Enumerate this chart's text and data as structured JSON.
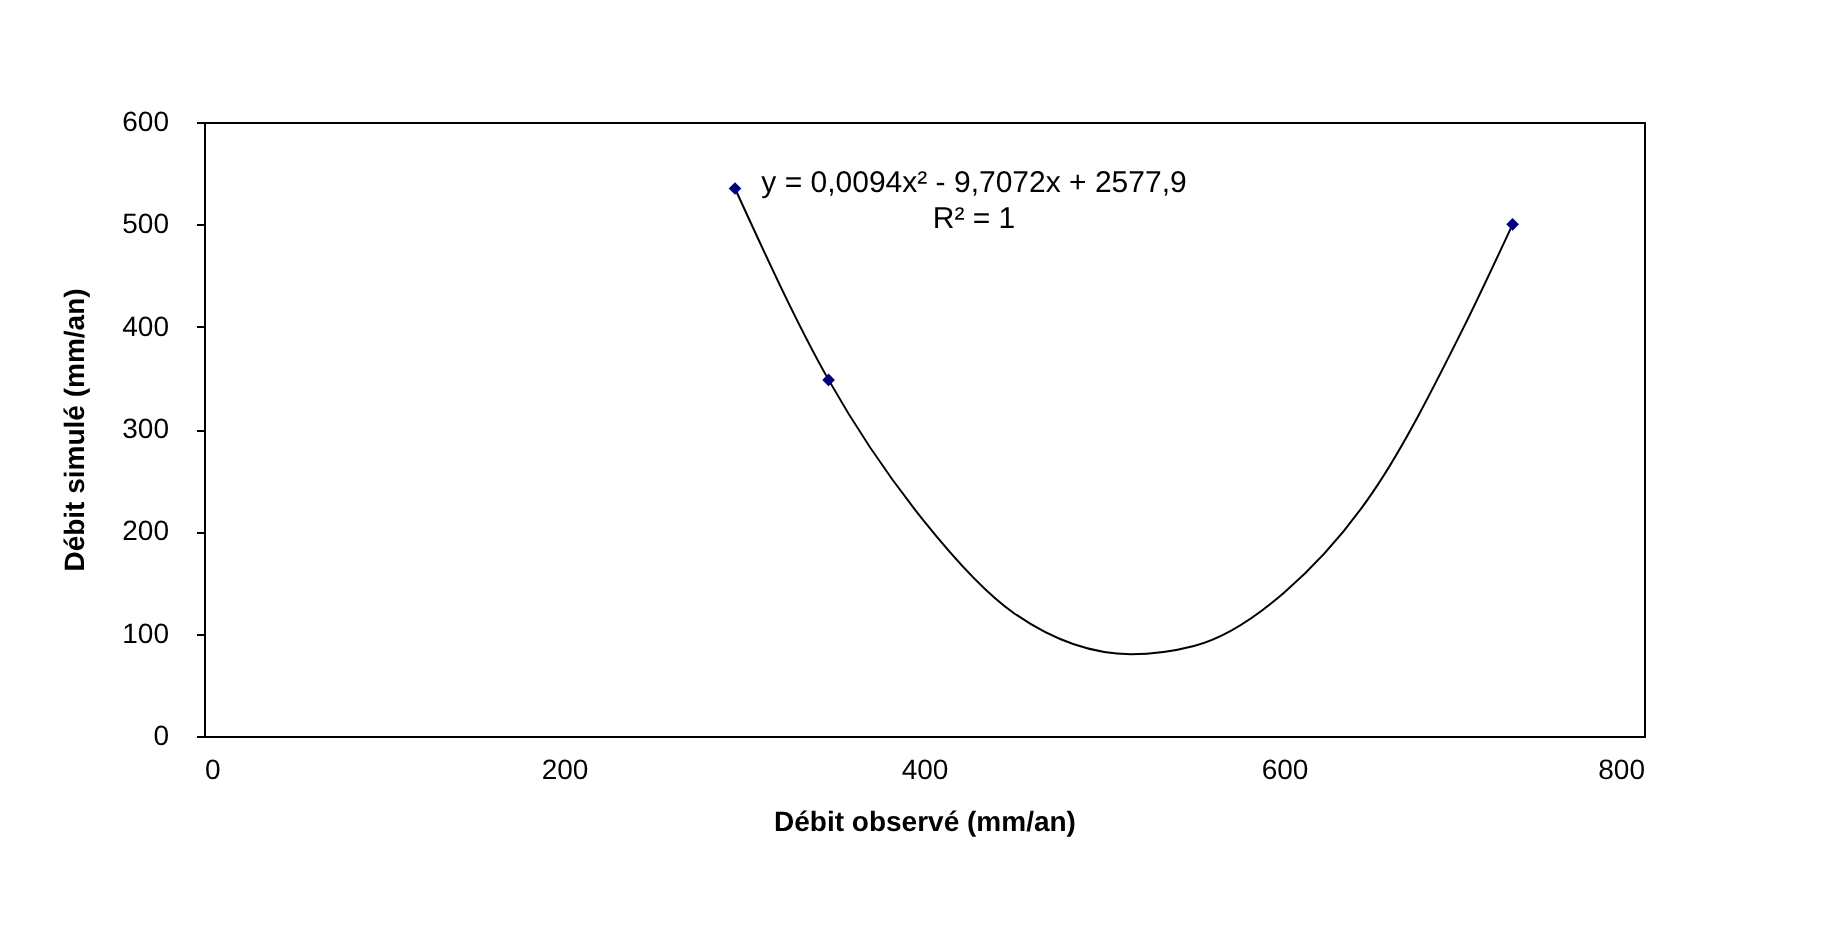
{
  "chart_data": {
    "type": "scatter",
    "xlabel": "Débit observé (mm/an)",
    "ylabel": "Débit simulé (mm/an)",
    "xlim": [
      0,
      800
    ],
    "xticks": [
      0,
      200,
      400,
      600,
      800
    ],
    "ylim": [
      0,
      600
    ],
    "yticks": [
      0,
      100,
      200,
      300,
      400,
      500,
      600
    ],
    "grid": false,
    "series": [
      {
        "type": "line",
        "color": "#000000",
        "marker": "none",
        "x": [
          295,
          347,
          400,
          450,
          515,
          550,
          600,
          650,
          700,
          727
        ],
        "values": [
          535,
          348,
          210,
          120,
          80,
          88,
          140,
          240,
          400,
          500
        ]
      },
      {
        "color": "#000080",
        "marker": "diamond",
        "x": [
          295,
          347,
          727
        ],
        "values": [
          535,
          348,
          500
        ]
      }
    ],
    "annotations": [
      "y = 0,0094x² - 9,7072x + 2577,9",
      "R² = 1"
    ]
  }
}
